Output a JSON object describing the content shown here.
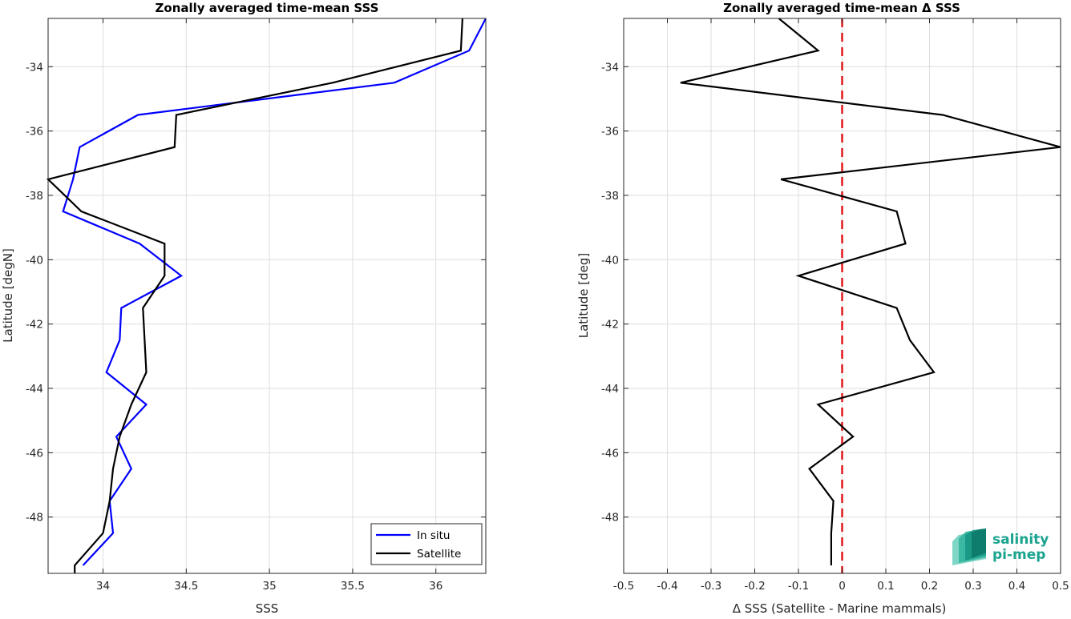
{
  "chart_data": [
    {
      "type": "line",
      "title": "Zonally averaged time-mean SSS",
      "xlabel": "SSS",
      "ylabel": "Latitude [degN]",
      "xlim": [
        33.67,
        36.3
      ],
      "ylim": [
        -49.75,
        -32.5
      ],
      "xticks": [
        34,
        34.5,
        35,
        35.5,
        36
      ],
      "yticks": [
        -48,
        -46,
        -44,
        -42,
        -40,
        -38,
        -36,
        -34
      ],
      "grid": true,
      "legend_placement": "bottom-right",
      "series": [
        {
          "name": "In situ",
          "color": "#0000ff",
          "points": [
            [
              36.3,
              -32.5
            ],
            [
              36.2,
              -33.5
            ],
            [
              35.75,
              -34.5
            ],
            [
              34.21,
              -35.5
            ],
            [
              33.86,
              -36.5
            ],
            [
              33.82,
              -37.5
            ],
            [
              33.76,
              -38.5
            ],
            [
              34.22,
              -39.5
            ],
            [
              34.47,
              -40.5
            ],
            [
              34.11,
              -41.5
            ],
            [
              34.1,
              -42.5
            ],
            [
              34.02,
              -43.5
            ],
            [
              34.26,
              -44.5
            ],
            [
              34.08,
              -45.5
            ],
            [
              34.17,
              -46.5
            ],
            [
              34.04,
              -47.5
            ],
            [
              34.06,
              -48.5
            ],
            [
              33.88,
              -49.5
            ]
          ]
        },
        {
          "name": "Satellite",
          "color": "#000000",
          "points": [
            [
              36.16,
              -32.5
            ],
            [
              36.15,
              -33.5
            ],
            [
              35.38,
              -34.5
            ],
            [
              34.44,
              -35.5
            ],
            [
              34.43,
              -36.5
            ],
            [
              33.67,
              -37.5
            ],
            [
              33.87,
              -38.5
            ],
            [
              34.37,
              -39.5
            ],
            [
              34.37,
              -40.5
            ],
            [
              34.24,
              -41.5
            ],
            [
              34.25,
              -42.5
            ],
            [
              34.26,
              -43.5
            ],
            [
              34.17,
              -44.5
            ],
            [
              34.1,
              -45.5
            ],
            [
              34.06,
              -46.5
            ],
            [
              34.04,
              -47.5
            ],
            [
              34.0,
              -48.5
            ],
            [
              33.83,
              -49.5
            ],
            [
              33.83,
              -49.75
            ]
          ]
        }
      ]
    },
    {
      "type": "line",
      "title": "Zonally averaged time-mean Δ SSS",
      "xlabel": "Δ SSS (Satellite - Marine mammals)",
      "ylabel": "Latitude [deg]",
      "xlim": [
        -0.5,
        0.5
      ],
      "ylim": [
        -49.75,
        -32.5
      ],
      "xticks": [
        -0.5,
        -0.4,
        -0.3,
        -0.2,
        -0.1,
        0,
        0.1,
        0.2,
        0.3,
        0.4,
        0.5
      ],
      "xtick_labels": [
        "-0.5",
        "-0.4",
        "-0.3",
        "-0.2",
        "-0.1",
        "0",
        "0.1",
        "0.2",
        "0.3",
        "0.4",
        "0.5"
      ],
      "yticks": [
        -48,
        -46,
        -44,
        -42,
        -40,
        -38,
        -36,
        -34
      ],
      "grid": true,
      "zero_line": {
        "x": 0,
        "color": "#e31a1c",
        "style": "dashed"
      },
      "series": [
        {
          "color": "#000000",
          "points": [
            [
              -0.145,
              -32.5
            ],
            [
              -0.055,
              -33.5
            ],
            [
              -0.37,
              -34.5
            ],
            [
              0.23,
              -35.5
            ],
            [
              0.5,
              -36.5
            ],
            [
              -0.14,
              -37.5
            ],
            [
              0.125,
              -38.5
            ],
            [
              0.145,
              -39.5
            ],
            [
              -0.1,
              -40.5
            ],
            [
              0.125,
              -41.5
            ],
            [
              0.155,
              -42.5
            ],
            [
              0.21,
              -43.5
            ],
            [
              -0.055,
              -44.5
            ],
            [
              0.025,
              -45.5
            ],
            [
              -0.075,
              -46.5
            ],
            [
              -0.02,
              -47.5
            ],
            [
              -0.025,
              -48.5
            ],
            [
              -0.025,
              -49.5
            ]
          ]
        }
      ],
      "logo": {
        "line1": "salinity",
        "line2": "pi-mep",
        "color": "#1aa38f"
      }
    }
  ]
}
